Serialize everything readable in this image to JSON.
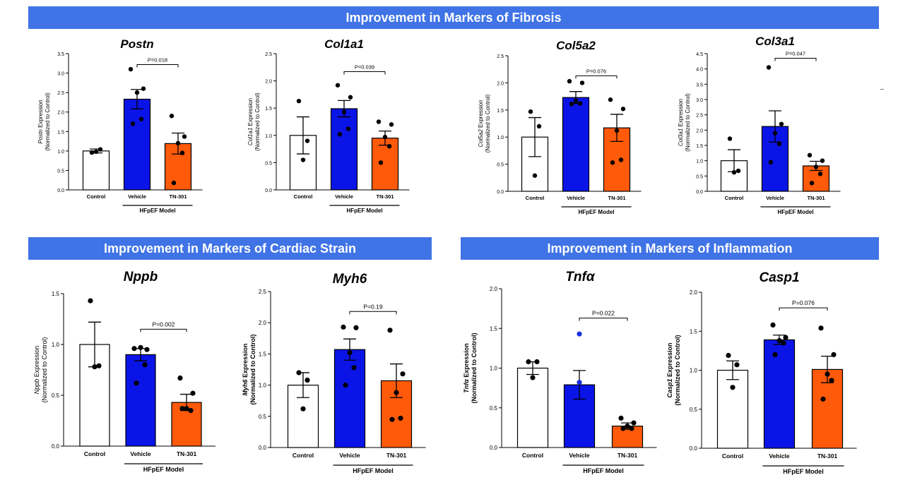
{
  "banners": {
    "fibrosis": "Improvement in Markers of Fibrosis",
    "strain": "Improvement in Markers of Cardiac Strain",
    "inflammation": "Improvement in Markers of Inflammation"
  },
  "colors": {
    "control": "#ffffff",
    "vehicle": "#0b14e6",
    "tn301": "#ff5a0a",
    "banner": "#3f73e6",
    "dot": "#000000",
    "dot_vehicle_tnfa": "#1a2fe0"
  },
  "chart_data": [
    {
      "type": "bar",
      "title": "Postn",
      "gene": "Postn",
      "ylabel_suffix": "Expression",
      "ylabel2": "(Normalized to Control)",
      "categories": [
        "Control",
        "Vehicle",
        "TN-301"
      ],
      "group_label": "HFpEF Model",
      "ylim": [
        0,
        3.5
      ],
      "yticks": [
        "0.0",
        "0.5",
        "1.0",
        "1.5",
        "2.0",
        "2.5",
        "3.0",
        "3.5"
      ],
      "values": [
        1.0,
        2.33,
        1.19
      ],
      "sem": [
        0.05,
        0.25,
        0.27
      ],
      "points": [
        [
          0.96,
          1.04,
          0.98
        ],
        [
          3.1,
          2.6,
          2.5,
          1.82,
          1.7
        ],
        [
          1.9,
          1.37,
          1.2,
          0.95,
          0.18
        ]
      ],
      "pvalue": {
        "text": "P=0.018",
        "from": 1,
        "to": 2,
        "y": 3.22
      }
    },
    {
      "type": "bar",
      "title": "Col1a1",
      "gene": "Col1a1",
      "ylabel_suffix": "Expression",
      "ylabel2": "(Normalized to Control)",
      "categories": [
        "Control",
        "Vehicle",
        "TN-301"
      ],
      "group_label": "HFpEF Model",
      "ylim": [
        0,
        2.5
      ],
      "yticks": [
        "0.0",
        "0.5",
        "1.0",
        "1.5",
        "2.0",
        "2.5"
      ],
      "values": [
        1.0,
        1.49,
        0.95
      ],
      "sem": [
        0.34,
        0.15,
        0.13
      ],
      "points": [
        [
          1.63,
          0.9,
          0.55
        ],
        [
          1.92,
          1.7,
          1.43,
          1.12,
          1.02
        ],
        [
          1.25,
          1.2,
          0.97,
          0.8,
          0.5
        ]
      ],
      "pvalue": {
        "text": "P=0.039",
        "from": 1,
        "to": 2,
        "y": 2.17
      }
    },
    {
      "type": "bar",
      "title": "Col5a2",
      "gene": "Col5a2",
      "ylabel_suffix": "Expression",
      "ylabel2": "(Normalized to Control)",
      "categories": [
        "Control",
        "Vehicle",
        "TN-301"
      ],
      "group_label": "HFpEF Model",
      "ylim": [
        0,
        2.5
      ],
      "yticks": [
        "0.0",
        "0.5",
        "1.0",
        "1.5",
        "2.0",
        "2.5"
      ],
      "values": [
        1.0,
        1.73,
        1.17
      ],
      "sem": [
        0.36,
        0.11,
        0.25
      ],
      "points": [
        [
          1.47,
          1.2,
          0.29
        ],
        [
          2.03,
          2.0,
          1.67,
          1.62,
          1.61
        ],
        [
          1.69,
          1.52,
          1.12,
          0.58,
          0.53
        ]
      ],
      "pvalue": {
        "text": "P=0.076",
        "from": 1,
        "to": 2,
        "y": 2.13
      }
    },
    {
      "type": "bar",
      "title": "Col3a1",
      "gene": "Col3a1",
      "ylabel_suffix": "Expression",
      "ylabel2": "(Normalized to Control)",
      "categories": [
        "Control",
        "Vehicle",
        "TN-301"
      ],
      "group_label": "HFpEF Model",
      "ylim": [
        0,
        4.5
      ],
      "yticks": [
        "0.0",
        "0.5",
        "1.0",
        "1.5",
        "2.0",
        "2.5",
        "3.0",
        "3.5",
        "4.0",
        "4.5"
      ],
      "values": [
        1.0,
        2.12,
        0.83
      ],
      "sem": [
        0.36,
        0.51,
        0.15
      ],
      "points": [
        [
          1.72,
          0.67,
          0.62
        ],
        [
          4.05,
          2.2,
          1.9,
          1.55,
          0.95
        ],
        [
          1.18,
          1.0,
          0.8,
          0.57,
          0.27
        ]
      ],
      "pvalue": {
        "text": "P=0.047",
        "from": 1,
        "to": 2,
        "y": 4.35
      }
    },
    {
      "type": "bar",
      "title": "Nppb",
      "gene": "Nppb",
      "ylabel_suffix": "Expression",
      "ylabel2": "(Normalized to Control)",
      "categories": [
        "Control",
        "Vehicle",
        "TN-301"
      ],
      "group_label": "HFpEF Model",
      "ylim": [
        0,
        1.5
      ],
      "yticks": [
        "0.0",
        "0.5",
        "1.0",
        "1.5"
      ],
      "values": [
        1.0,
        0.9,
        0.43
      ],
      "sem": [
        0.22,
        0.06,
        0.08
      ],
      "points": [
        [
          1.43,
          0.79,
          0.78
        ],
        [
          0.96,
          0.95,
          0.97,
          0.8,
          0.62
        ],
        [
          0.67,
          0.52,
          0.37,
          0.35,
          0.37
        ]
      ],
      "pvalue": {
        "text": "P=0.002",
        "from": 1,
        "to": 2,
        "y": 1.15
      }
    },
    {
      "type": "bar",
      "title": "Myh6",
      "gene": "Myh6",
      "ylabel_suffix": "Expression",
      "ylabel2": "(Normalized to Control)",
      "categories": [
        "Control",
        "Vehicle",
        "TN-301"
      ],
      "group_label": "HFpEF Model",
      "ylim": [
        0,
        2.5
      ],
      "yticks": [
        "0.0",
        "0.5",
        "1.0",
        "1.5",
        "2.0",
        "2.5"
      ],
      "values": [
        1.0,
        1.57,
        1.07
      ],
      "sem": [
        0.2,
        0.17,
        0.27
      ],
      "points": [
        [
          1.2,
          1.08,
          0.62
        ],
        [
          1.93,
          1.92,
          1.52,
          1.28,
          1.0
        ],
        [
          1.88,
          1.18,
          0.88,
          0.47,
          0.45
        ]
      ],
      "pvalue": {
        "text": "P=0.19",
        "from": 1,
        "to": 2,
        "y": 2.18
      }
    },
    {
      "type": "bar",
      "title": "Tnfα",
      "gene": "Tnfα",
      "ylabel_suffix": "Expression",
      "ylabel2": "(Normalized to Control)",
      "categories": [
        "Control",
        "Vehicle",
        "TN-301"
      ],
      "group_label": "HFpEF Model",
      "ylim": [
        0,
        2.0
      ],
      "yticks": [
        "0.0",
        "0.5",
        "1.0",
        "1.5",
        "2.0"
      ],
      "values": [
        1.0,
        0.79,
        0.27
      ],
      "sem": [
        0.08,
        0.18,
        0.04
      ],
      "points": [
        [
          1.08,
          1.08,
          0.88
        ],
        [
          1.43,
          0.82
        ],
        [
          0.37,
          0.31,
          0.27,
          0.24,
          0.24
        ]
      ],
      "pvalue": {
        "text": "P=0.022",
        "from": 1,
        "to": 2,
        "y": 1.63
      }
    },
    {
      "type": "bar",
      "title": "Casp1",
      "gene": "Casp1",
      "ylabel_suffix": "Expression",
      "ylabel2": "(Normalized to Control)",
      "categories": [
        "Control",
        "Vehicle",
        "TN-301"
      ],
      "group_label": "HFpEF Model",
      "ylim": [
        0,
        2.0
      ],
      "yticks": [
        "0.0",
        "0.5",
        "1.0",
        "1.5",
        "2.0"
      ],
      "values": [
        1.0,
        1.39,
        1.01
      ],
      "sem": [
        0.12,
        0.06,
        0.17
      ],
      "points": [
        [
          1.19,
          1.07,
          0.78
        ],
        [
          1.58,
          1.42,
          1.38,
          1.35,
          1.2
        ],
        [
          1.54,
          1.2,
          0.95,
          0.87,
          0.63
        ]
      ],
      "pvalue": {
        "text": "P=0.076",
        "from": 1,
        "to": 2,
        "y": 1.8
      }
    }
  ]
}
